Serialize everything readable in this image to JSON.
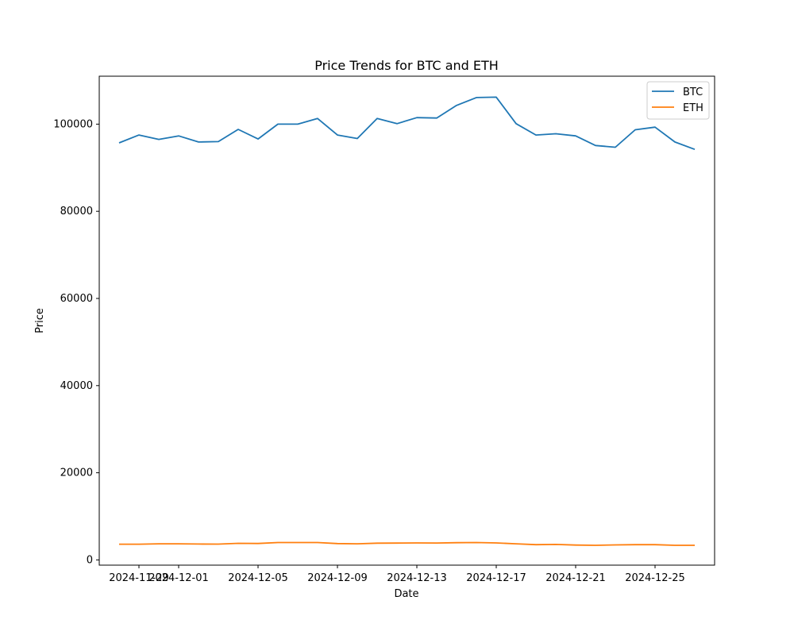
{
  "chart_data": {
    "type": "line",
    "title": "Price Trends for BTC and ETH",
    "xlabel": "Date",
    "ylabel": "Price",
    "xlim": [
      "2024-11-27",
      "2024-12-28"
    ],
    "ylim": [
      -1200,
      111000
    ],
    "x_ticks": [
      "2024-11-29",
      "2024-12-01",
      "2024-12-05",
      "2024-12-09",
      "2024-12-13",
      "2024-12-17",
      "2024-12-21",
      "2024-12-25"
    ],
    "y_ticks": [
      0,
      20000,
      40000,
      60000,
      80000,
      100000
    ],
    "grid": false,
    "legend": "top-right",
    "x": [
      "2024-11-28",
      "2024-11-29",
      "2024-11-30",
      "2024-12-01",
      "2024-12-02",
      "2024-12-03",
      "2024-12-04",
      "2024-12-05",
      "2024-12-06",
      "2024-12-07",
      "2024-12-08",
      "2024-12-09",
      "2024-12-10",
      "2024-12-11",
      "2024-12-12",
      "2024-12-13",
      "2024-12-14",
      "2024-12-15",
      "2024-12-16",
      "2024-12-17",
      "2024-12-18",
      "2024-12-19",
      "2024-12-20",
      "2024-12-21",
      "2024-12-22",
      "2024-12-23",
      "2024-12-24",
      "2024-12-25",
      "2024-12-26",
      "2024-12-27"
    ],
    "series": [
      {
        "name": "BTC",
        "color": "#1f77b4",
        "values": [
          95700,
          97500,
          96500,
          97300,
          95900,
          96000,
          98800,
          96600,
          100000,
          100000,
          101300,
          97500,
          96700,
          101300,
          100100,
          101500,
          101400,
          104300,
          106100,
          106200,
          100100,
          97500,
          97800,
          97300,
          95100,
          94700,
          98700,
          99300,
          95900,
          94200
        ]
      },
      {
        "name": "ETH",
        "color": "#ff7f0e",
        "values": [
          3600,
          3600,
          3700,
          3700,
          3650,
          3630,
          3800,
          3780,
          4000,
          4000,
          4000,
          3750,
          3700,
          3850,
          3870,
          3900,
          3880,
          3950,
          4000,
          3900,
          3700,
          3500,
          3550,
          3400,
          3350,
          3450,
          3500,
          3500,
          3350,
          3350
        ]
      }
    ]
  }
}
